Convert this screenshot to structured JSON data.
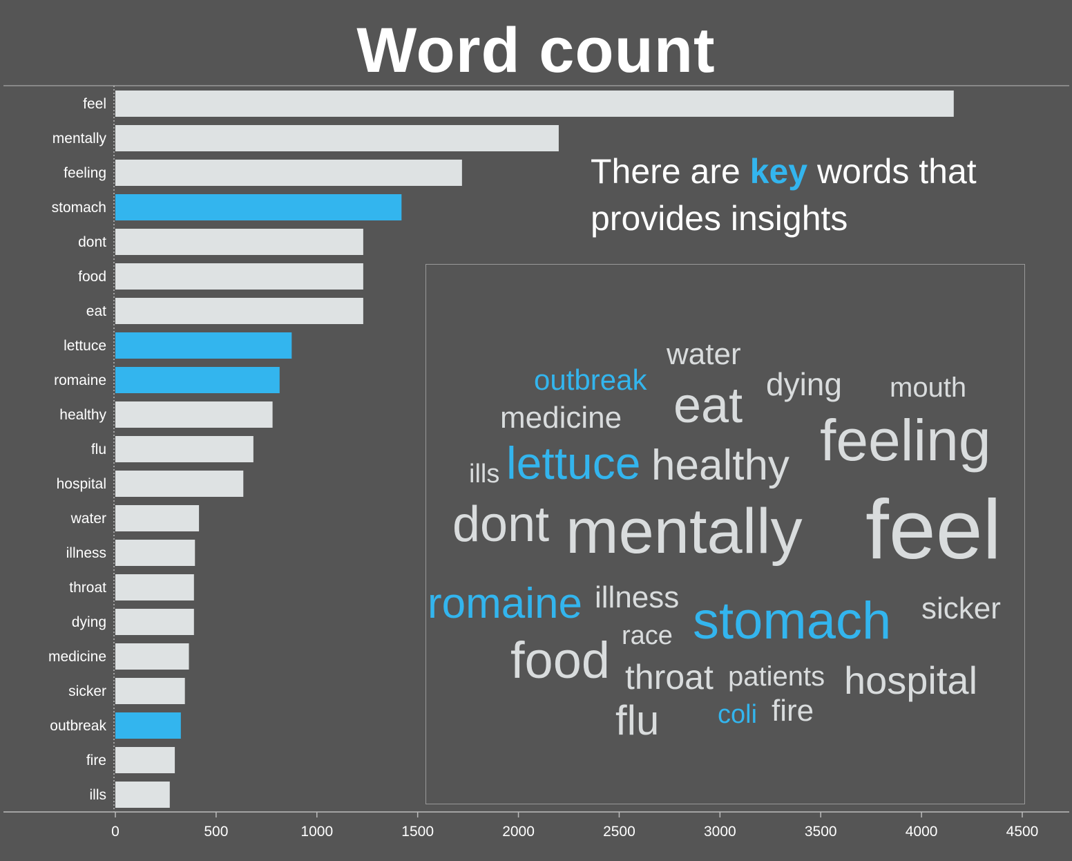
{
  "chart_data": {
    "type": "bar",
    "orientation": "horizontal",
    "title": "Word count",
    "categories": [
      "feel",
      "mentally",
      "feeling",
      "stomach",
      "dont",
      "food",
      "eat",
      "lettuce",
      "romaine",
      "healthy",
      "flu",
      "hospital",
      "water",
      "illness",
      "throat",
      "dying",
      "medicine",
      "sicker",
      "outbreak",
      "fire",
      "ills"
    ],
    "values": [
      4160,
      2200,
      1720,
      1420,
      1230,
      1230,
      1230,
      875,
      815,
      780,
      685,
      635,
      415,
      395,
      390,
      390,
      365,
      345,
      325,
      295,
      270
    ],
    "highlighted": [
      "stomach",
      "lettuce",
      "romaine",
      "outbreak"
    ],
    "xlim": [
      0,
      4500
    ],
    "xticks": [
      0,
      500,
      1000,
      1500,
      2000,
      2500,
      3000,
      3500,
      4000,
      4500
    ],
    "grid": false
  },
  "annotation": {
    "before": "There are ",
    "key": "key",
    "after": "  words that provides insights"
  },
  "word_cloud": [
    {
      "text": "water",
      "highlight": false
    },
    {
      "text": "outbreak",
      "highlight": true
    },
    {
      "text": "dying",
      "highlight": false
    },
    {
      "text": "mouth",
      "highlight": false
    },
    {
      "text": "eat",
      "highlight": false
    },
    {
      "text": "medicine",
      "highlight": false
    },
    {
      "text": "feeling",
      "highlight": false
    },
    {
      "text": "ills",
      "highlight": false
    },
    {
      "text": "lettuce",
      "highlight": true
    },
    {
      "text": "healthy",
      "highlight": false
    },
    {
      "text": "dont",
      "highlight": false
    },
    {
      "text": "mentally",
      "highlight": false
    },
    {
      "text": "feel",
      "highlight": false
    },
    {
      "text": "romaine",
      "highlight": true
    },
    {
      "text": "illness",
      "highlight": false
    },
    {
      "text": "stomach",
      "highlight": true
    },
    {
      "text": "sicker",
      "highlight": false
    },
    {
      "text": "race",
      "highlight": false
    },
    {
      "text": "food",
      "highlight": false
    },
    {
      "text": "throat",
      "highlight": false
    },
    {
      "text": "patients",
      "highlight": false
    },
    {
      "text": "hospital",
      "highlight": false
    },
    {
      "text": "flu",
      "highlight": false
    },
    {
      "text": "coli",
      "highlight": true
    },
    {
      "text": "fire",
      "highlight": false
    }
  ],
  "colors": {
    "background": "#555555",
    "bar": "#dee2e3",
    "highlight": "#33b5ee",
    "text": "#ffffff",
    "cloud_text": "#d9dcdd"
  }
}
